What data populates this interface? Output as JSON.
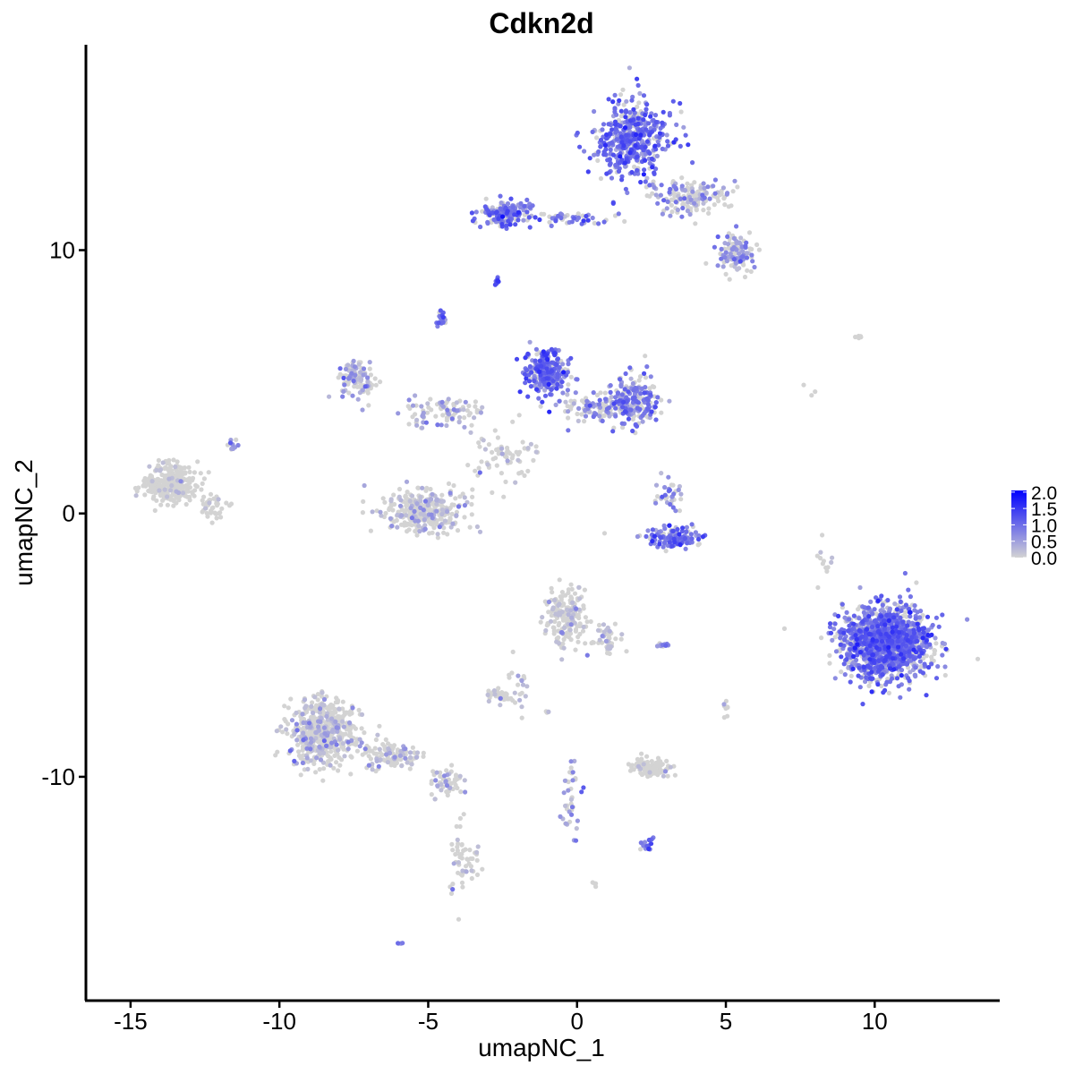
{
  "chart_data": {
    "type": "scatter",
    "title": "Cdkn2d",
    "xlabel": "umapNC_1",
    "ylabel": "umapNC_2",
    "xlim": [
      -16.5,
      14.2
    ],
    "ylim": [
      -18.5,
      17.8
    ],
    "x_ticks": [
      -15,
      -10,
      -5,
      0,
      5,
      10
    ],
    "y_ticks": [
      -10,
      0,
      10
    ],
    "x_tick_labels": [
      "-15",
      "-10",
      "-5",
      "0",
      "5",
      "10"
    ],
    "y_tick_labels": [
      "-10",
      "0",
      "10"
    ],
    "grid": false,
    "color_scale": {
      "low": "#d3d3d3",
      "high": "#0000ff",
      "min": 0,
      "max": 2.05,
      "legend_ticks": [
        2.0,
        1.5,
        1.0,
        0.5,
        0.0
      ],
      "legend_tick_labels": [
        "2.0",
        "1.5",
        "1.0",
        "0.5",
        "0.0"
      ],
      "legend_placement": "right"
    },
    "clusters": [
      {
        "center": [
          1.9,
          14.2
        ],
        "spread": [
          1.2,
          1.3
        ],
        "n": 460,
        "expression": 0.95
      },
      {
        "center": [
          3.8,
          12.0
        ],
        "spread": [
          1.1,
          0.6
        ],
        "n": 160,
        "expression": 0.55
      },
      {
        "center": [
          5.3,
          9.9
        ],
        "spread": [
          0.6,
          0.7
        ],
        "n": 110,
        "expression": 0.6
      },
      {
        "center": [
          -2.4,
          11.4
        ],
        "spread": [
          0.8,
          0.4
        ],
        "n": 160,
        "expression": 0.9
      },
      {
        "center": [
          -0.2,
          11.2
        ],
        "spread": [
          1.2,
          0.2
        ],
        "n": 45,
        "expression": 0.85
      },
      {
        "center": [
          -2.7,
          8.8
        ],
        "spread": [
          0.1,
          0.12
        ],
        "n": 12,
        "expression": 1.0
      },
      {
        "center": [
          -4.6,
          7.4
        ],
        "spread": [
          0.15,
          0.3
        ],
        "n": 20,
        "expression": 1.05
      },
      {
        "center": [
          -1.0,
          5.4
        ],
        "spread": [
          0.7,
          0.8
        ],
        "n": 240,
        "expression": 1.0
      },
      {
        "center": [
          1.9,
          4.3
        ],
        "spread": [
          0.8,
          0.8
        ],
        "n": 210,
        "expression": 0.8
      },
      {
        "center": [
          0.5,
          4.0
        ],
        "spread": [
          1.3,
          0.45
        ],
        "n": 110,
        "expression": 0.6
      },
      {
        "center": [
          -7.4,
          5.1
        ],
        "spread": [
          0.55,
          0.7
        ],
        "n": 110,
        "expression": 0.55
      },
      {
        "center": [
          -4.4,
          3.9
        ],
        "spread": [
          1.3,
          0.5
        ],
        "n": 90,
        "expression": 0.45
      },
      {
        "center": [
          -2.5,
          2.2
        ],
        "spread": [
          0.9,
          1.0
        ],
        "n": 70,
        "expression": 0.2
      },
      {
        "center": [
          -5.2,
          0.1
        ],
        "spread": [
          1.3,
          0.7
        ],
        "n": 330,
        "expression": 0.3
      },
      {
        "center": [
          -13.6,
          1.1
        ],
        "spread": [
          0.8,
          0.65
        ],
        "n": 300,
        "expression": 0.04
      },
      {
        "center": [
          -12.2,
          0.2
        ],
        "spread": [
          0.4,
          0.5
        ],
        "n": 40,
        "expression": 0.08
      },
      {
        "center": [
          -11.6,
          2.6
        ],
        "spread": [
          0.2,
          0.25
        ],
        "n": 12,
        "expression": 0.7
      },
      {
        "center": [
          3.3,
          -0.9
        ],
        "spread": [
          0.9,
          0.35
        ],
        "n": 140,
        "expression": 0.9
      },
      {
        "center": [
          3.1,
          0.7
        ],
        "spread": [
          0.4,
          0.5
        ],
        "n": 35,
        "expression": 0.6
      },
      {
        "center": [
          -0.4,
          -3.9
        ],
        "spread": [
          0.6,
          0.9
        ],
        "n": 190,
        "expression": 0.2
      },
      {
        "center": [
          1.0,
          -4.8
        ],
        "spread": [
          0.5,
          0.6
        ],
        "n": 50,
        "expression": 0.35
      },
      {
        "center": [
          -1.9,
          -6.5
        ],
        "spread": [
          0.3,
          0.9
        ],
        "n": 20,
        "expression": 0.35
      },
      {
        "center": [
          -2.6,
          -6.9
        ],
        "spread": [
          0.4,
          0.2
        ],
        "n": 45,
        "expression": 0.12
      },
      {
        "center": [
          -8.6,
          -8.3
        ],
        "spread": [
          1.0,
          1.2
        ],
        "n": 520,
        "expression": 0.3
      },
      {
        "center": [
          -6.2,
          -9.2
        ],
        "spread": [
          0.9,
          0.45
        ],
        "n": 120,
        "expression": 0.3
      },
      {
        "center": [
          -4.4,
          -10.2
        ],
        "spread": [
          0.5,
          0.5
        ],
        "n": 55,
        "expression": 0.35
      },
      {
        "center": [
          -3.8,
          -13.3
        ],
        "spread": [
          0.45,
          1.5
        ],
        "n": 55,
        "expression": 0.15
      },
      {
        "center": [
          2.4,
          -9.6
        ],
        "spread": [
          0.6,
          0.3
        ],
        "n": 110,
        "expression": 0.04
      },
      {
        "center": [
          -0.2,
          -10.9
        ],
        "spread": [
          0.25,
          1.2
        ],
        "n": 40,
        "expression": 0.6
      },
      {
        "center": [
          2.3,
          -12.6
        ],
        "spread": [
          0.2,
          0.25
        ],
        "n": 15,
        "expression": 0.8
      },
      {
        "center": [
          10.4,
          -4.9
        ],
        "spread": [
          1.3,
          1.25
        ],
        "n": 1450,
        "expression": 0.9
      },
      {
        "center": [
          8.3,
          -2.2
        ],
        "spread": [
          0.25,
          1.2
        ],
        "n": 12,
        "expression": 0.15
      },
      {
        "center": [
          9.5,
          6.7
        ],
        "spread": [
          0.25,
          0.08
        ],
        "n": 5,
        "expression": 0.2
      },
      {
        "center": [
          7.7,
          4.6
        ],
        "spread": [
          0.3,
          0.3
        ],
        "n": 3,
        "expression": 0.1
      },
      {
        "center": [
          -6.0,
          -16.3
        ],
        "spread": [
          0.1,
          0.1
        ],
        "n": 4,
        "expression": 0.8
      },
      {
        "center": [
          0.6,
          -14.1
        ],
        "spread": [
          0.1,
          0.1
        ],
        "n": 4,
        "expression": 0.05
      },
      {
        "center": [
          2.9,
          -5.0
        ],
        "spread": [
          0.3,
          0.1
        ],
        "n": 10,
        "expression": 0.6
      },
      {
        "center": [
          5.0,
          -7.5
        ],
        "spread": [
          0.1,
          0.3
        ],
        "n": 8,
        "expression": 0.1
      },
      {
        "center": [
          -1.0,
          -7.5
        ],
        "spread": [
          0.1,
          0.2
        ],
        "n": 4,
        "expression": 0.2
      }
    ]
  }
}
